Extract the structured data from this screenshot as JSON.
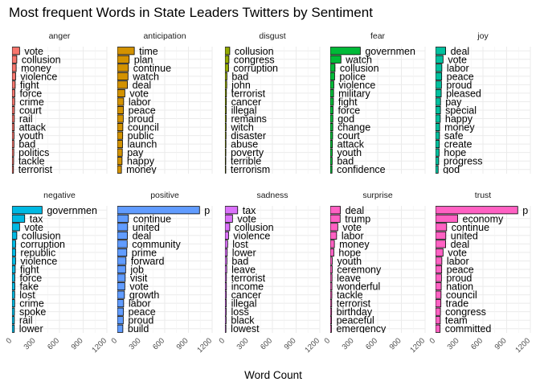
{
  "chart_data": {
    "type": "bar",
    "orientation": "horizontal",
    "title": "Most frequent Words in State Leaders Twitters by Sentiment",
    "xlabel": "Word Count",
    "xlim": [
      0,
      1200
    ],
    "xticks": [
      "0",
      "300",
      "600",
      "900",
      "1200"
    ],
    "grid": true,
    "legend": "none",
    "facets": [
      {
        "name": "anger",
        "color": "#F8766D",
        "words": [
          "vote",
          "collusion",
          "money",
          "violence",
          "fight",
          "force",
          "crime",
          "court",
          "rail",
          "attack",
          "youth",
          "bad",
          "politics",
          "tackle",
          "terrorist"
        ],
        "values": [
          95,
          60,
          52,
          45,
          40,
          35,
          33,
          30,
          29,
          27,
          25,
          24,
          22,
          20,
          18
        ]
      },
      {
        "name": "anticipation",
        "color": "#D39200",
        "words": [
          "time",
          "plan",
          "continue",
          "watch",
          "deal",
          "vote",
          "labor",
          "peace",
          "proud",
          "council",
          "public",
          "launch",
          "pay",
          "happy",
          "money"
        ],
        "values": [
          215,
          150,
          140,
          135,
          128,
          95,
          80,
          78,
          75,
          70,
          68,
          66,
          63,
          60,
          52
        ]
      },
      {
        "name": "disgust",
        "color": "#93AA00",
        "words": [
          "collusion",
          "congress",
          "corruption",
          "bad",
          "john",
          "terrorist",
          "cancer",
          "illegal",
          "remains",
          "witch",
          "disaster",
          "abuse",
          "poverty",
          "terrible",
          "terrorism"
        ],
        "values": [
          60,
          50,
          45,
          24,
          22,
          18,
          17,
          16,
          15,
          14,
          13,
          12,
          11,
          10,
          9
        ]
      },
      {
        "name": "fear",
        "color": "#00BA38",
        "words": [
          "governmen",
          "watch",
          "collusion",
          "police",
          "violence",
          "military",
          "fight",
          "force",
          "god",
          "change",
          "court",
          "attack",
          "youth",
          "bad",
          "confidence"
        ],
        "values": [
          380,
          135,
          60,
          55,
          45,
          42,
          40,
          35,
          33,
          32,
          30,
          27,
          25,
          24,
          22
        ]
      },
      {
        "name": "joy",
        "color": "#00C19F",
        "words": [
          "deal",
          "vote",
          "labor",
          "peace",
          "proud",
          "pleased",
          "pay",
          "special",
          "happy",
          "money",
          "safe",
          "create",
          "hope",
          "progress",
          "god"
        ],
        "values": [
          128,
          95,
          80,
          78,
          75,
          72,
          63,
          62,
          60,
          52,
          50,
          48,
          45,
          40,
          33
        ]
      },
      {
        "name": "negative",
        "color": "#00B9E3",
        "words": [
          "governmen",
          "tax",
          "vote",
          "collusion",
          "corruption",
          "republic",
          "violence",
          "fight",
          "force",
          "fake",
          "lost",
          "crime",
          "spoke",
          "rail",
          "lower"
        ],
        "values": [
          380,
          160,
          95,
          60,
          45,
          45,
          45,
          40,
          35,
          35,
          33,
          33,
          30,
          29,
          28
        ]
      },
      {
        "name": "positive",
        "color": "#619CFF",
        "words": [
          "p",
          "continue",
          "united",
          "deal",
          "community",
          "prime",
          "forward",
          "job",
          "visit",
          "vote",
          "growth",
          "labor",
          "peace",
          "proud",
          "build"
        ],
        "values": [
          1040,
          140,
          130,
          128,
          125,
          120,
          110,
          105,
          100,
          95,
          90,
          80,
          78,
          75,
          70
        ]
      },
      {
        "name": "sadness",
        "color": "#DB72FB",
        "words": [
          "tax",
          "vote",
          "collusion",
          "violence",
          "lost",
          "lower",
          "bad",
          "leave",
          "terrorist",
          "income",
          "cancer",
          "illegal",
          "loss",
          "black",
          "lowest"
        ],
        "values": [
          160,
          95,
          60,
          45,
          33,
          28,
          24,
          22,
          18,
          18,
          17,
          16,
          15,
          14,
          12
        ]
      },
      {
        "name": "surprise",
        "color": "#FF61C3",
        "words": [
          "deal",
          "trump",
          "vote",
          "labor",
          "money",
          "hope",
          "youth",
          "ceremony",
          "leave",
          "wonderful",
          "tackle",
          "terrorist",
          "birthday",
          "peaceful",
          "emergency"
        ],
        "values": [
          128,
          125,
          95,
          80,
          52,
          45,
          25,
          24,
          22,
          21,
          20,
          18,
          17,
          16,
          15
        ]
      },
      {
        "name": "trust",
        "color": "#FF61C3",
        "words": [
          "p",
          "economy",
          "continue",
          "united",
          "deal",
          "vote",
          "labor",
          "peace",
          "proud",
          "nation",
          "council",
          "trade",
          "congress",
          "team",
          "committed"
        ],
        "values": [
          1040,
          280,
          140,
          130,
          128,
          95,
          80,
          78,
          75,
          72,
          70,
          68,
          62,
          60,
          58
        ]
      }
    ]
  }
}
